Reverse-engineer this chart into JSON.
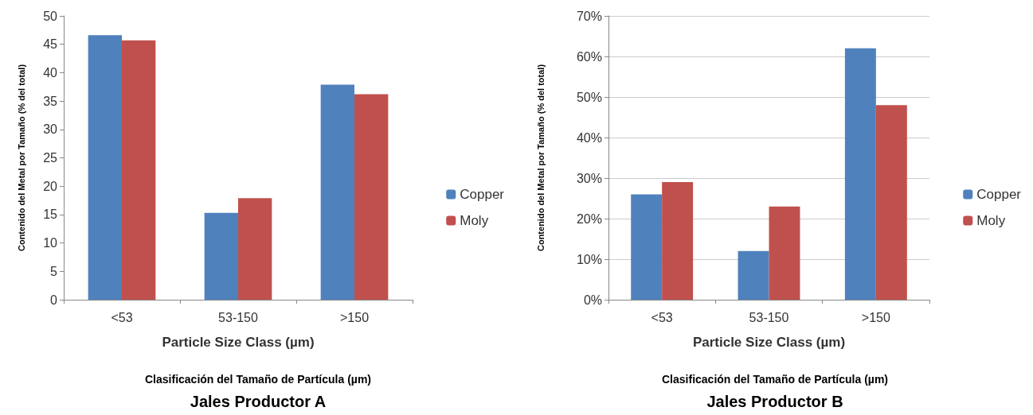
{
  "chart_data": [
    {
      "type": "bar",
      "title": "Jales Productor A",
      "xlabel": "Particle Size Class (µm)",
      "ylabel": "Contenido del Metal por Tamaño (% del total)",
      "annotations": [
        "Clasificación del Tamaño de Partícula (µm)"
      ],
      "categories": [
        "<53",
        "53-150",
        ">150"
      ],
      "series": [
        {
          "name": "Copper",
          "color": "#4f81bd",
          "values": [
            46.6,
            15.3,
            37.9
          ]
        },
        {
          "name": "Moly",
          "color": "#c0504d",
          "values": [
            45.7,
            17.9,
            36.2
          ]
        }
      ],
      "ylim": [
        0,
        50
      ],
      "yticks": [
        0,
        5,
        10,
        15,
        20,
        25,
        30,
        35,
        40,
        45,
        50
      ],
      "grid": false,
      "legend": "right"
    },
    {
      "type": "bar",
      "title": "Jales Productor B",
      "xlabel": "Particle Size Class (µm)",
      "ylabel": "Contenido del Metal por Tamaño (% del total)",
      "annotations": [
        "Clasificación del Tamaño de Partícula (µm)"
      ],
      "categories": [
        "<53",
        "53-150",
        ">150"
      ],
      "series": [
        {
          "name": "Copper",
          "color": "#4f81bd",
          "values": [
            26,
            12,
            62
          ]
        },
        {
          "name": "Moly",
          "color": "#c0504d",
          "values": [
            29,
            23,
            48
          ]
        }
      ],
      "ylim": [
        0,
        70
      ],
      "yticks": [
        {
          "value": 0,
          "label": "0%"
        },
        {
          "value": 10,
          "label": "10%"
        },
        {
          "value": 20,
          "label": "20%"
        },
        {
          "value": 30,
          "label": "30%"
        },
        {
          "value": 40,
          "label": "40%"
        },
        {
          "value": 50,
          "label": "50%"
        },
        {
          "value": 60,
          "label": "60%"
        },
        {
          "value": 70,
          "label": "70%"
        }
      ],
      "grid": "y",
      "legend": "right"
    }
  ]
}
